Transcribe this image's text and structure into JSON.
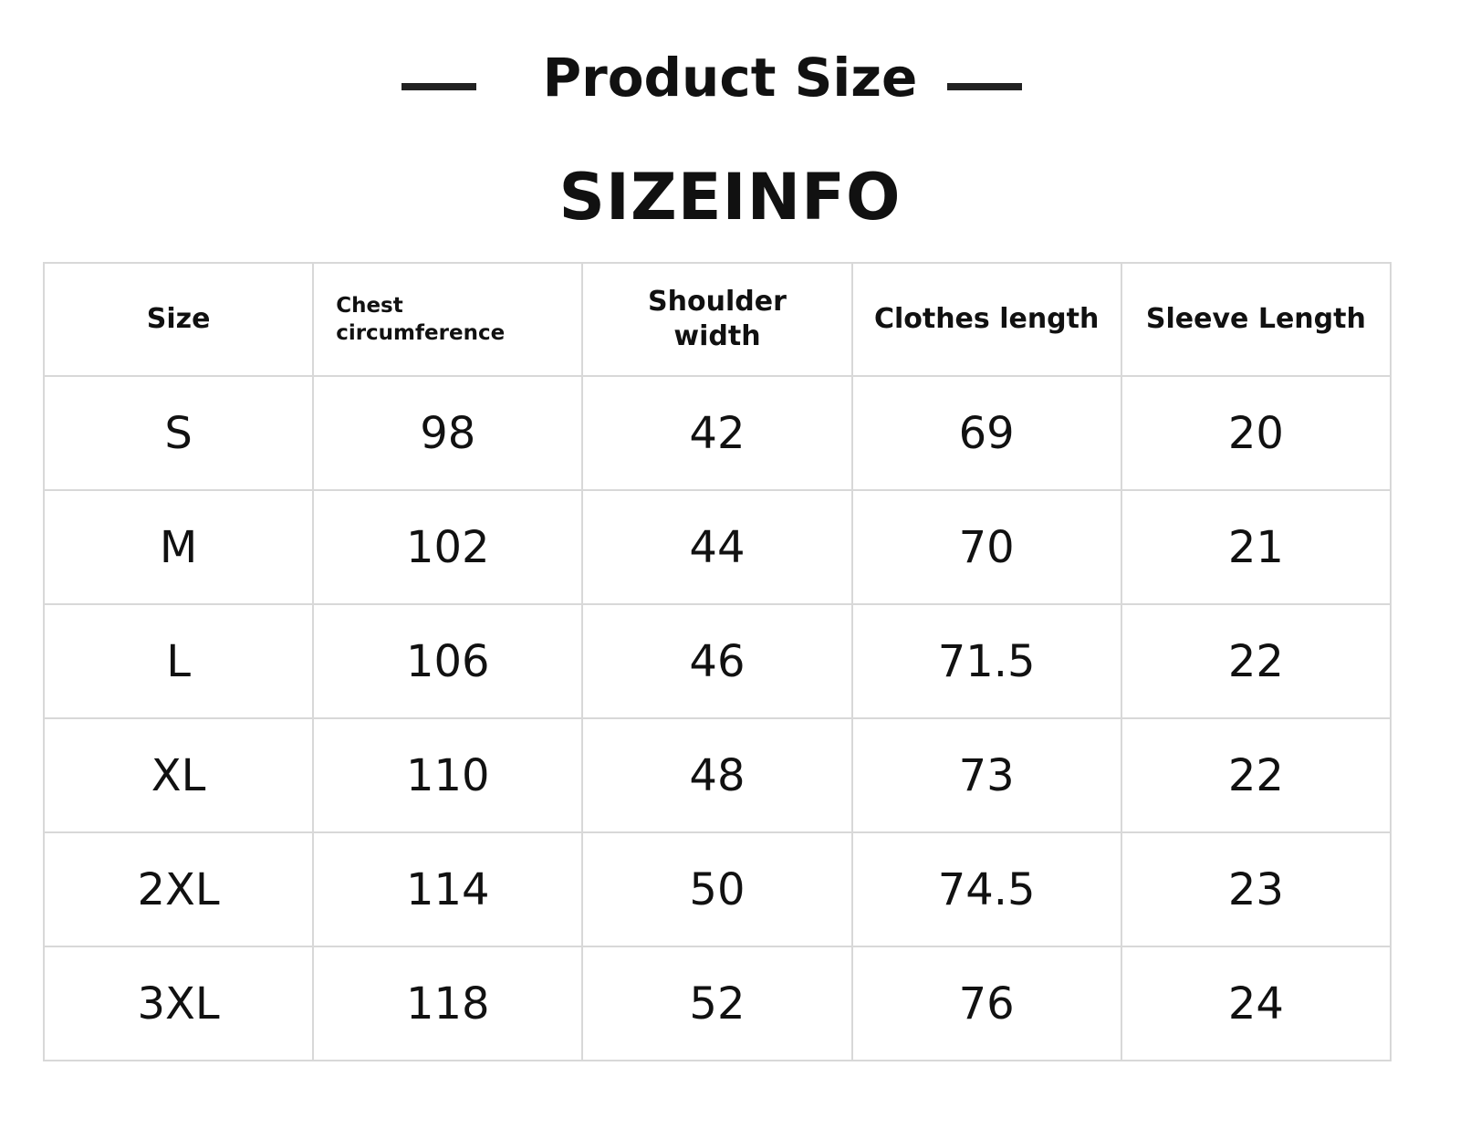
{
  "header": {
    "title": "Product Size",
    "subtitle": "SIZEINFO"
  },
  "table": {
    "columns": [
      "Size",
      "Chest circumference",
      "Shoulder width",
      "Clothes length",
      "Sleeve Length"
    ],
    "rows": [
      [
        "S",
        "98",
        "42",
        "69",
        "20"
      ],
      [
        "M",
        "102",
        "44",
        "70",
        "21"
      ],
      [
        "L",
        "106",
        "46",
        "71.5",
        "22"
      ],
      [
        "XL",
        "110",
        "48",
        "73",
        "22"
      ],
      [
        "2XL",
        "114",
        "50",
        "74.5",
        "23"
      ],
      [
        "3XL",
        "118",
        "52",
        "76",
        "24"
      ]
    ]
  }
}
